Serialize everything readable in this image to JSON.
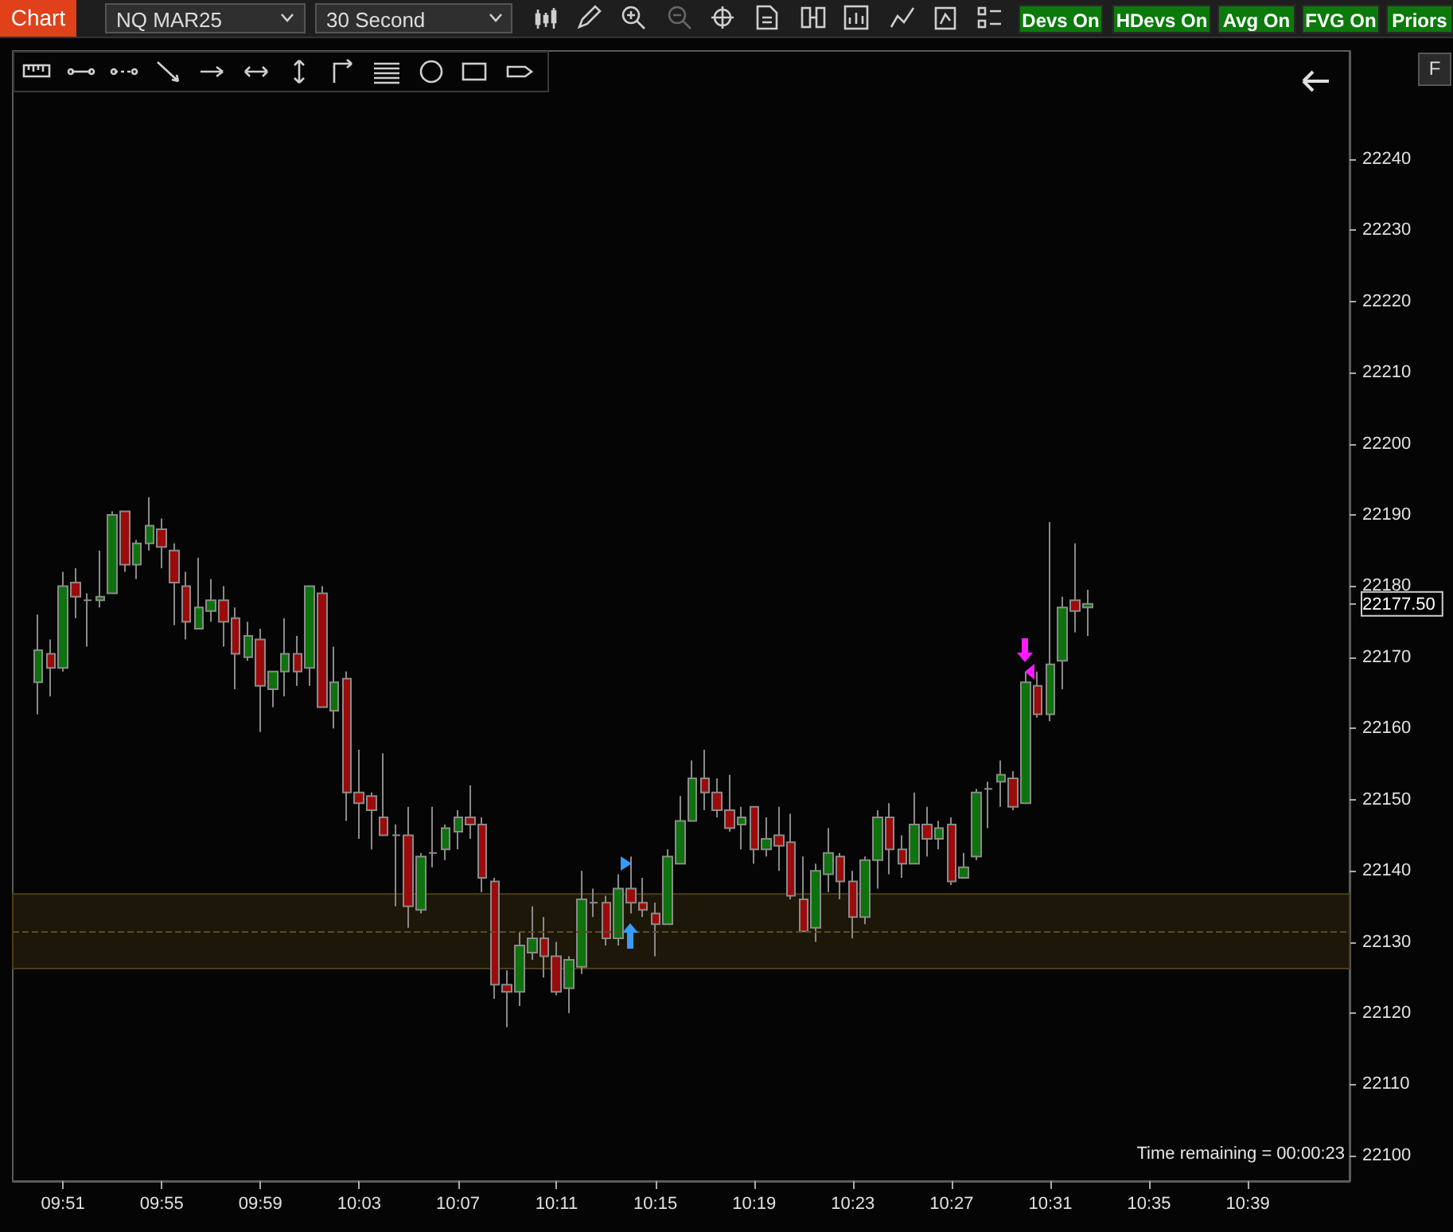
{
  "chart_data": {
    "type": "candlestick",
    "title": "NQ MAR25",
    "subtitle": "30 Second",
    "annotations": [
      "Chart",
      "Devs On",
      "HDevs On",
      "Avg On",
      "FVG On",
      "Priors",
      "F",
      "Time remaining = 00:00:23"
    ],
    "x": [
      9.8333,
      9.8417,
      9.85,
      9.8583,
      9.8667,
      9.875,
      9.8833,
      9.8917,
      9.9,
      9.9083,
      9.9167,
      9.925,
      9.9333,
      9.9417,
      9.95,
      9.9583,
      9.9667,
      9.975,
      9.9833,
      9.9917,
      10.0,
      10.0083,
      10.0167,
      10.025,
      10.0333,
      10.0417,
      10.05,
      10.0583,
      10.0667,
      10.075,
      10.0833,
      10.0917,
      10.1,
      10.1083,
      10.1167,
      10.125,
      10.1333,
      10.1417,
      10.15,
      10.1583,
      10.1667,
      10.175,
      10.1833,
      10.1917,
      10.2,
      10.2083,
      10.2167,
      10.225,
      10.2333,
      10.2417,
      10.25,
      10.2583,
      10.2667,
      10.275,
      10.2833,
      10.2917,
      10.3,
      10.3083,
      10.3167,
      10.325,
      10.3333,
      10.3417,
      10.35,
      10.3583,
      10.3667,
      10.375,
      10.3833,
      10.3917,
      10.4,
      10.4083,
      10.4167,
      10.425,
      10.4333,
      10.4417,
      10.45,
      10.4583,
      10.4667,
      10.475,
      10.4833,
      10.4917,
      10.5,
      10.5083,
      10.5167,
      10.525,
      10.5333,
      10.5417
    ],
    "ohlc": [
      [
        22166.5,
        22176,
        22162,
        22171
      ],
      [
        22170.5,
        22172.5,
        22164.5,
        22168.5
      ],
      [
        22168.5,
        22182,
        22168,
        22180
      ],
      [
        22180.5,
        22182.5,
        22175.5,
        22178.5
      ],
      [
        22178,
        22179,
        22171.5,
        22178
      ],
      [
        22178,
        22185,
        22177,
        22178.5
      ],
      [
        22179,
        22190.5,
        22179,
        22190
      ],
      [
        22190.5,
        22190.5,
        22182,
        22183
      ],
      [
        22183,
        22186.5,
        22181,
        22186
      ],
      [
        22186,
        22192.5,
        22185,
        22188.5
      ],
      [
        22188,
        22189.5,
        22182.5,
        22185.5
      ],
      [
        22185,
        22186,
        22174.5,
        22180.5
      ],
      [
        22180,
        22182,
        22172.5,
        22175
      ],
      [
        22174,
        22184,
        22174,
        22177
      ],
      [
        22176.5,
        22181,
        22175,
        22178
      ],
      [
        22178,
        22180,
        22171.5,
        22175
      ],
      [
        22175.5,
        22177,
        22165.5,
        22170.5
      ],
      [
        22170,
        22175,
        22169.5,
        22173
      ],
      [
        22172.5,
        22174,
        22159.5,
        22166
      ],
      [
        22165.5,
        22168,
        22163,
        22168
      ],
      [
        22168,
        22175.5,
        22164.5,
        22170.5
      ],
      [
        22170.5,
        22173,
        22166,
        22168
      ],
      [
        22168.5,
        22180,
        22166,
        22180
      ],
      [
        22179,
        22180,
        22163,
        22163
      ],
      [
        22162.5,
        22171.5,
        22160,
        22166.5
      ],
      [
        22167,
        22168,
        22147,
        22151
      ],
      [
        22151,
        22157,
        22144.5,
        22149.5
      ],
      [
        22150.5,
        22151,
        22143,
        22148.5
      ],
      [
        22147.5,
        22156.5,
        22145,
        22145
      ],
      [
        22145,
        22146.5,
        22135,
        22145
      ],
      [
        22145,
        22149,
        22132,
        22135
      ],
      [
        22134.5,
        22142.5,
        22134,
        22142
      ],
      [
        22142.5,
        22149,
        22140.5,
        22142.5
      ],
      [
        22143,
        22146.5,
        22141.5,
        22146
      ],
      [
        22145.5,
        22148.5,
        22143,
        22147.5
      ],
      [
        22147.5,
        22152,
        22144.5,
        22146.5
      ],
      [
        22146.5,
        22147.5,
        22137,
        22139
      ],
      [
        22138.5,
        22139,
        22122,
        22124
      ],
      [
        22124,
        22126,
        22118,
        22123
      ],
      [
        22123,
        22131.5,
        22121,
        22129.5
      ],
      [
        22128.5,
        22135,
        22127.5,
        22130.5
      ],
      [
        22130.5,
        22133.5,
        22125,
        22128
      ],
      [
        22128,
        22130,
        22122.5,
        22123
      ],
      [
        22123.5,
        22128,
        22120,
        22127.5
      ],
      [
        22126.5,
        22140,
        22125.5,
        22136
      ],
      [
        22135.5,
        22137.5,
        22133.5,
        22135.5
      ],
      [
        22135.5,
        22136.5,
        22129.5,
        22130.5
      ],
      [
        22130.5,
        22139.5,
        22129.5,
        22137.5
      ],
      [
        22137.5,
        22142,
        22134,
        22135.5
      ],
      [
        22135.5,
        22139,
        22133.5,
        22134.5
      ],
      [
        22134,
        22135.5,
        22128,
        22132.5
      ],
      [
        22132.5,
        22143,
        22132.5,
        22142
      ],
      [
        22141,
        22150.5,
        22141,
        22147
      ],
      [
        22147,
        22155.5,
        22147,
        22153
      ],
      [
        22153,
        22157,
        22148.5,
        22151
      ],
      [
        22151,
        22153,
        22147.5,
        22148.5
      ],
      [
        22148.5,
        22153.5,
        22145.5,
        22146
      ],
      [
        22146.5,
        22149,
        22143,
        22147.5
      ],
      [
        22149,
        22149,
        22141,
        22143
      ],
      [
        22143,
        22147.5,
        22142,
        22144.5
      ],
      [
        22145,
        22149,
        22140,
        22143.5
      ],
      [
        22144,
        22148,
        22136,
        22136.5
      ],
      [
        22136,
        22142,
        22131.5,
        22131.5
      ],
      [
        22132,
        22141,
        22130,
        22140
      ],
      [
        22139.5,
        22146,
        22137,
        22142.5
      ],
      [
        22142,
        22142.5,
        22136,
        22138.5
      ],
      [
        22138.5,
        22140,
        22130.5,
        22133.5
      ],
      [
        22133.5,
        22142,
        22132.5,
        22141.5
      ],
      [
        22141.5,
        22148.5,
        22137.5,
        22147.5
      ],
      [
        22147.5,
        22149.5,
        22139.5,
        22143
      ],
      [
        22143,
        22145,
        22139,
        22141
      ],
      [
        22141,
        22151,
        22141,
        22146.5
      ],
      [
        22146.5,
        22149,
        22142,
        22144.5
      ],
      [
        22144.5,
        22147,
        22143,
        22146
      ],
      [
        22146.5,
        22147.5,
        22138,
        22138.5
      ],
      [
        22139,
        22142.5,
        22139,
        22140.5
      ],
      [
        22142,
        22151.5,
        22141.5,
        22151
      ],
      [
        22151.5,
        22152.5,
        22146,
        22151.5
      ],
      [
        22152.5,
        22155.5,
        22149,
        22153.5
      ],
      [
        22153,
        22154,
        22148.5,
        22149
      ],
      [
        22149.5,
        22168,
        22149.5,
        22166.5
      ],
      [
        22166,
        22168,
        22161.5,
        22162
      ],
      [
        22162,
        22189,
        22161,
        22169
      ],
      [
        22169.5,
        22178.5,
        22165.5,
        22177
      ],
      [
        22178,
        22186,
        22173.5,
        22176.5
      ],
      [
        22177,
        22179.5,
        22173,
        22177.5
      ]
    ],
    "xlim": [
      9.8161,
      10.7187
    ],
    "xticks": [
      {
        "value": 9.85,
        "label": "09:51"
      },
      {
        "value": 9.9167,
        "label": "09:55"
      },
      {
        "value": 9.9833,
        "label": "09:59"
      },
      {
        "value": 10.05,
        "label": "10:03"
      },
      {
        "value": 10.1167,
        "label": "10:07"
      },
      {
        "value": 10.1833,
        "label": "10:11"
      },
      {
        "value": 10.25,
        "label": "10:15"
      },
      {
        "value": 10.3167,
        "label": "10:19"
      },
      {
        "value": 10.3833,
        "label": "10:23"
      },
      {
        "value": 10.45,
        "label": "10:27"
      },
      {
        "value": 10.5167,
        "label": "10:31"
      },
      {
        "value": 10.5833,
        "label": "10:35"
      },
      {
        "value": 10.65,
        "label": "10:39"
      }
    ],
    "ylim": [
      22096.4,
      22255.2
    ],
    "yticks": [
      22100,
      22110,
      22120,
      22130,
      22140,
      22150,
      22160,
      22170,
      {
        "value": 22177.5,
        "label": "22177.50"
      },
      22180,
      22190,
      22200,
      22210,
      22220,
      22230,
      22240
    ],
    "bands": [
      {
        "axis": "y",
        "from": 22126.25,
        "to": 22136.75,
        "color": "#1c1709"
      }
    ],
    "ref_lines": [
      {
        "axis": "y",
        "value": 22131.5,
        "line_style": "dashed",
        "color": "#5c4b22"
      }
    ]
  }
}
